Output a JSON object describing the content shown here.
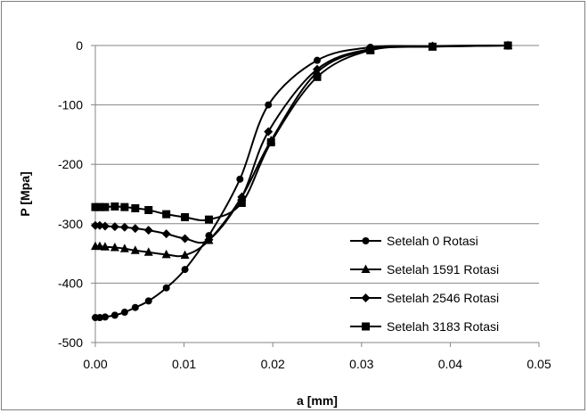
{
  "chart_data": {
    "type": "line",
    "title": "",
    "xlabel": "a [mm]",
    "ylabel": "P [Mpa]",
    "xlim": [
      0,
      0.05
    ],
    "ylim": [
      -500,
      0
    ],
    "x_ticks": [
      0.0,
      0.01,
      0.02,
      0.03,
      0.04,
      0.05
    ],
    "x_tick_labels": [
      "0.00",
      "0.01",
      "0.02",
      "0.03",
      "0.04",
      "0.05"
    ],
    "y_ticks": [
      0,
      -100,
      -200,
      -300,
      -400,
      -500
    ],
    "y_tick_labels": [
      "0",
      "-100",
      "-200",
      "-300",
      "-400",
      "-500"
    ],
    "grid": "horizontal",
    "legend_position": "right",
    "series": [
      {
        "name": "Setelah 0 Rotasi",
        "marker": "circle",
        "color": "#000000",
        "points": [
          [
            0.0,
            -458
          ],
          [
            0.0005,
            -458
          ],
          [
            0.0011,
            -457
          ],
          [
            0.0022,
            -454
          ],
          [
            0.0033,
            -449
          ],
          [
            0.0045,
            -441
          ],
          [
            0.006,
            -430
          ],
          [
            0.008,
            -408
          ],
          [
            0.0101,
            -377
          ],
          [
            0.0128,
            -320
          ],
          [
            0.0163,
            -225
          ],
          [
            0.0195,
            -100
          ],
          [
            0.025,
            -25
          ],
          [
            0.031,
            -3
          ],
          [
            0.038,
            -1
          ],
          [
            0.0465,
            0
          ]
        ]
      },
      {
        "name": "Setelah 1591 Rotasi",
        "marker": "triangle",
        "color": "#000000",
        "points": [
          [
            0.0,
            -338
          ],
          [
            0.0005,
            -338
          ],
          [
            0.0011,
            -339
          ],
          [
            0.0022,
            -340
          ],
          [
            0.0033,
            -342
          ],
          [
            0.0045,
            -345
          ],
          [
            0.006,
            -348
          ],
          [
            0.008,
            -352
          ],
          [
            0.0101,
            -353
          ],
          [
            0.0128,
            -328
          ],
          [
            0.0165,
            -255
          ],
          [
            0.0198,
            -160
          ],
          [
            0.025,
            -45
          ],
          [
            0.031,
            -7
          ],
          [
            0.038,
            -2
          ],
          [
            0.0465,
            0
          ]
        ]
      },
      {
        "name": "Setelah 2546 Rotasi",
        "marker": "diamond",
        "color": "#000000",
        "points": [
          [
            0.0,
            -303
          ],
          [
            0.0005,
            -303
          ],
          [
            0.0011,
            -304
          ],
          [
            0.0022,
            -305
          ],
          [
            0.0033,
            -306
          ],
          [
            0.0045,
            -308
          ],
          [
            0.006,
            -311
          ],
          [
            0.008,
            -317
          ],
          [
            0.0101,
            -325
          ],
          [
            0.0128,
            -327
          ],
          [
            0.0165,
            -255
          ],
          [
            0.0195,
            -145
          ],
          [
            0.025,
            -40
          ],
          [
            0.031,
            -6
          ],
          [
            0.038,
            -1
          ],
          [
            0.0465,
            0
          ]
        ]
      },
      {
        "name": "Setelah 3183 Rotasi",
        "marker": "square",
        "color": "#000000",
        "points": [
          [
            0.0,
            -272
          ],
          [
            0.0005,
            -272
          ],
          [
            0.0011,
            -272
          ],
          [
            0.0022,
            -271
          ],
          [
            0.0033,
            -272
          ],
          [
            0.0045,
            -274
          ],
          [
            0.006,
            -277
          ],
          [
            0.008,
            -284
          ],
          [
            0.0101,
            -289
          ],
          [
            0.0128,
            -293
          ],
          [
            0.0165,
            -265
          ],
          [
            0.0198,
            -163
          ],
          [
            0.025,
            -53
          ],
          [
            0.031,
            -8
          ],
          [
            0.038,
            -2
          ],
          [
            0.0465,
            0
          ]
        ]
      }
    ]
  }
}
